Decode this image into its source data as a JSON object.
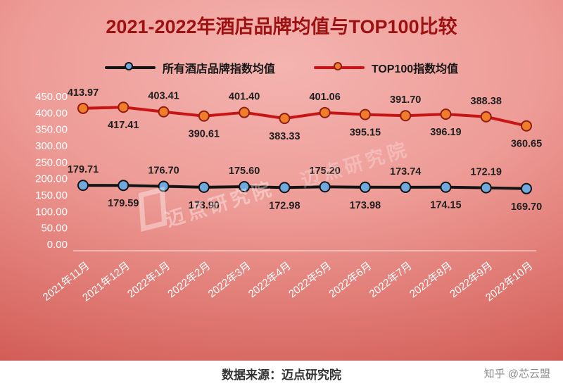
{
  "title": "2021-2022年酒店品牌均值与TOP100比较",
  "legend": [
    {
      "label": "所有酒店品牌指数均值",
      "line_color": "#141414",
      "marker_fill": "#70a9dd",
      "marker_stroke": "#141414"
    },
    {
      "label": "TOP100指数均值",
      "line_color": "#c71515",
      "marker_fill": "#f07d2a",
      "marker_stroke": "#8e1d14"
    }
  ],
  "chart_data": {
    "type": "line",
    "categories": [
      "2021年11月",
      "2021年12月",
      "2022年1月",
      "2022年2月",
      "2022年3月",
      "2022年4月",
      "2022年5月",
      "2022年6月",
      "2022年7月",
      "2022年8月",
      "2022年9月",
      "2022年10月"
    ],
    "series": [
      {
        "name": "所有酒店品牌指数均值",
        "line_color": "#141414",
        "marker_fill": "#70a9dd",
        "marker_stroke": "#141414",
        "values": [
          179.71,
          179.59,
          176.7,
          173.9,
          175.6,
          172.98,
          175.2,
          173.98,
          173.74,
          174.15,
          172.19,
          169.7
        ]
      },
      {
        "name": "TOP100指数均值",
        "line_color": "#c71515",
        "marker_fill": "#f07d2a",
        "marker_stroke": "#8e1d14",
        "values": [
          413.97,
          417.41,
          403.41,
          390.61,
          401.4,
          383.33,
          401.06,
          395.15,
          391.7,
          396.19,
          388.38,
          360.65
        ]
      }
    ],
    "ylim": [
      0,
      450
    ],
    "ytick_step": 50,
    "grid": false,
    "legend_position": "top",
    "label_alternation": "even-above-odd-below"
  },
  "watermark": "迈点研究院",
  "footer": {
    "source": "数据来源：迈点研究院",
    "attribution": "知乎 @芯云盟"
  },
  "colors": {
    "title": "#9c1212",
    "background_center": "#f4b4b0",
    "background_edge": "#cb4e48",
    "axis_text": "#ffffff",
    "data_label": "#1f1f1f",
    "footer_source": "#333333",
    "footer_attribution": "#8a8a8a"
  }
}
